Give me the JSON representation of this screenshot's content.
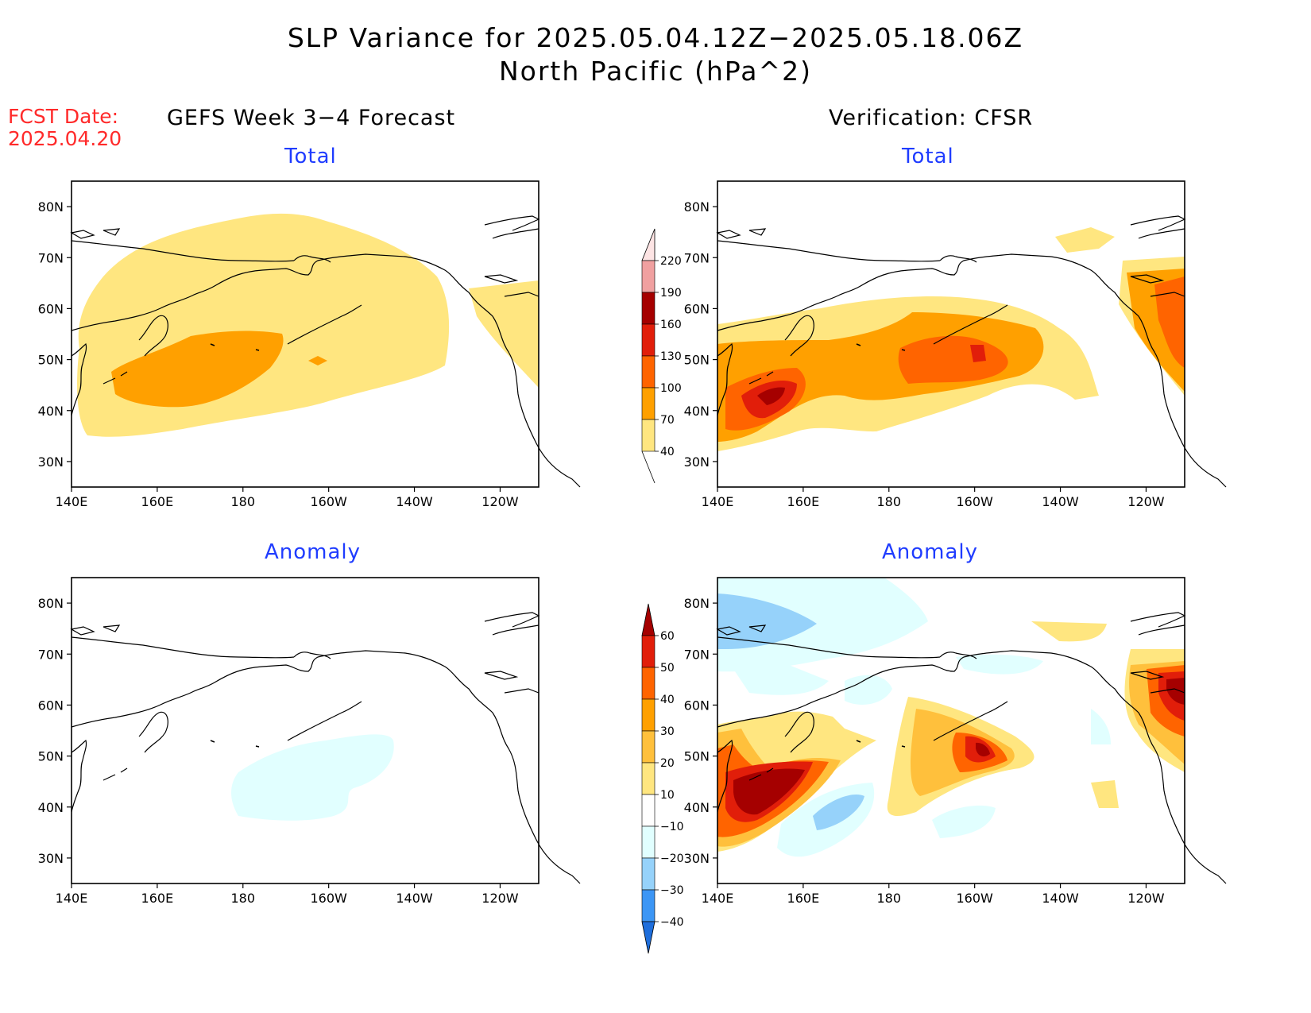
{
  "header": {
    "title_line1": "SLP Variance for 2025.05.04.12Z−2025.05.18.06Z",
    "title_line2": "North Pacific (hPa^2)",
    "fcst_label": "FCST Date:",
    "fcst_date": "2025.04.20",
    "left_column": "GEFS Week 3−4 Forecast",
    "right_column": "Verification: CFSR"
  },
  "panels": {
    "top_left_title": "Total",
    "top_right_title": "Total",
    "bottom_left_title": "Anomaly",
    "bottom_right_title": "Anomaly"
  },
  "axes": {
    "lat_labels": [
      "80N",
      "70N",
      "60N",
      "50N",
      "40N",
      "30N"
    ],
    "lat_values": [
      80,
      70,
      60,
      50,
      40,
      30
    ],
    "lon_labels": [
      "140E",
      "160E",
      "180",
      "160W",
      "140W",
      "120W"
    ],
    "lon_values": [
      140,
      160,
      180,
      200,
      220,
      240
    ],
    "lon_range": [
      140,
      249
    ],
    "lat_range": [
      25,
      85
    ]
  },
  "colorbars": {
    "total": {
      "labels": [
        "40",
        "70",
        "100",
        "130",
        "160",
        "190",
        "220"
      ],
      "colors": [
        "#ffe680",
        "#ffa000",
        "#ff6400",
        "#e11e0a",
        "#a50000",
        "#f0a0a0",
        "#fde4e4"
      ]
    },
    "anomaly": {
      "labels": [
        "−40",
        "−30",
        "−20",
        "−10",
        "10",
        "20",
        "30",
        "40",
        "50",
        "60"
      ],
      "colors": [
        "#1e6edc",
        "#3c96f5",
        "#96d2fa",
        "#e1ffff",
        "#ffffff",
        "#ffe680",
        "#ffc03c",
        "#ffa000",
        "#ff6400",
        "#e11e0a",
        "#a50000"
      ]
    }
  }
}
